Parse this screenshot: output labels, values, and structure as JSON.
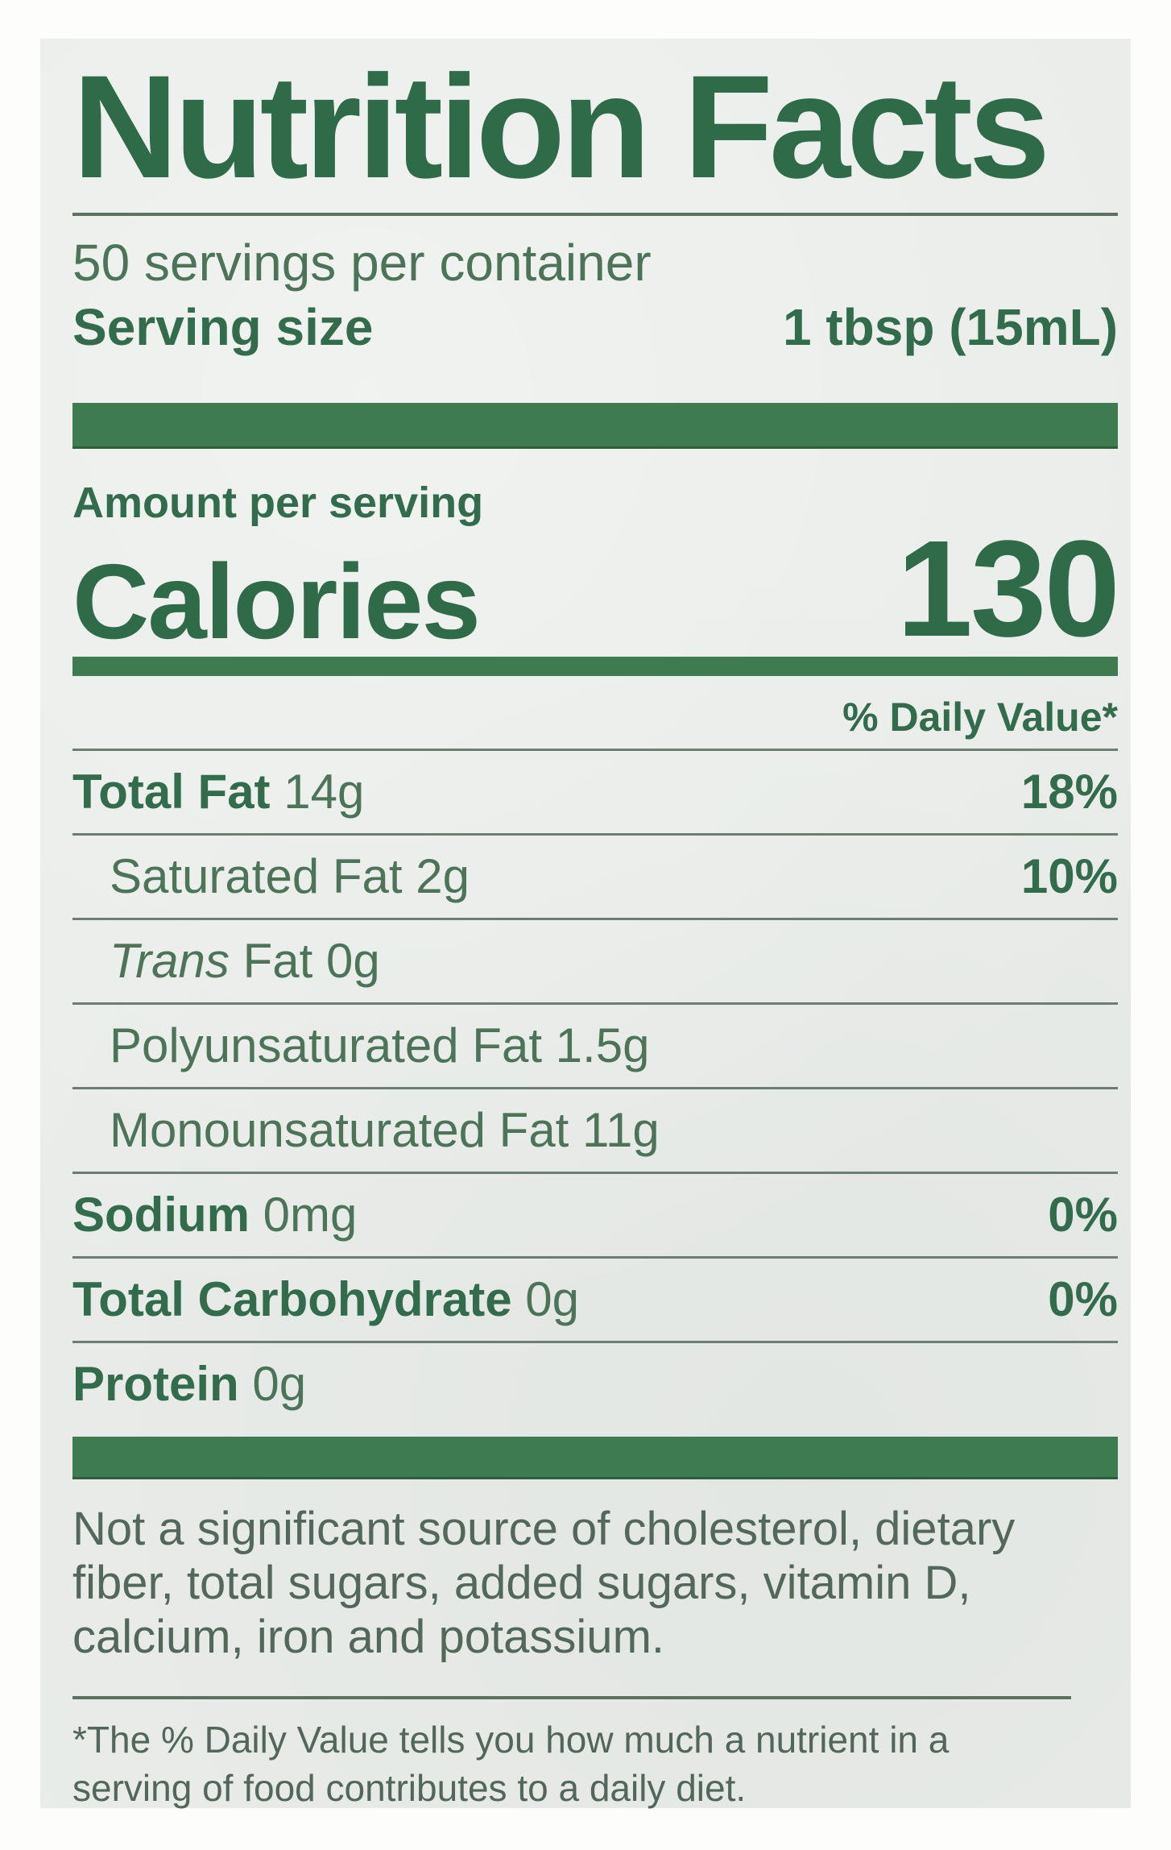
{
  "label": {
    "title": "Nutrition Facts",
    "servings_per_container": "50 servings per container",
    "serving_size_label": "Serving size",
    "serving_size_value": "1 tbsp (15mL)",
    "amount_per_serving": "Amount per serving",
    "calories_label": "Calories",
    "calories_value": "130",
    "daily_value_header": "% Daily Value*",
    "nutrients": [
      {
        "name": "Total Fat",
        "amount": "14g",
        "dv": "18%"
      },
      {
        "name": "Saturated Fat",
        "amount": "2g",
        "dv": "10%"
      },
      {
        "name_italic": "Trans",
        "name": "Fat",
        "amount": "0g",
        "dv": ""
      },
      {
        "name": "Polyunsaturated Fat",
        "amount": "1.5g",
        "dv": ""
      },
      {
        "name": "Monounsaturated Fat",
        "amount": "11g",
        "dv": ""
      },
      {
        "name": "Sodium",
        "amount": "0mg",
        "dv": "0%"
      },
      {
        "name": "Total Carbohydrate",
        "amount": "0g",
        "dv": "0%"
      },
      {
        "name": "Protein",
        "amount": "0g",
        "dv": ""
      }
    ],
    "not_significant_note": "Not a significant source of cholesterol, dietary fiber, total sugars, added sugars, vitamin D, calcium, iron and potassium.",
    "footnote": "*The % Daily Value tells you how much a nutrient in a serving of food contributes to a daily diet.",
    "colors": {
      "label_background": "#e9ece9",
      "accent_green_bar": "#3f7b50",
      "heading_green": "#2f6b49",
      "bold_text_green": "#336c4c",
      "body_text_green": "#4d7459"
    }
  }
}
